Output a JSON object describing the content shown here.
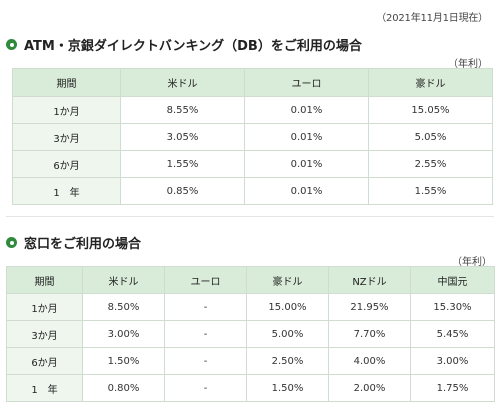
{
  "date_note": "（2021年11月1日現在）",
  "section1": {
    "title": "ATM・京銀ダイレクトバンキング（DB）をご利用の場合",
    "unit": "（年利）",
    "headers": [
      "期間",
      "米ドル",
      "ユーロ",
      "豪ドル"
    ],
    "rows": [
      {
        "label": "1か月",
        "values": [
          "8.55%",
          "0.01%",
          "15.05%"
        ]
      },
      {
        "label": "3か月",
        "values": [
          "3.05%",
          "0.01%",
          "5.05%"
        ]
      },
      {
        "label": "6か月",
        "values": [
          "1.55%",
          "0.01%",
          "2.55%"
        ]
      },
      {
        "label": "1　年",
        "values": [
          "0.85%",
          "0.01%",
          "1.55%"
        ]
      }
    ]
  },
  "section2": {
    "title": "窓口をご利用の場合",
    "unit": "（年利）",
    "headers": [
      "期間",
      "米ドル",
      "ユーロ",
      "豪ドル",
      "NZドル",
      "中国元"
    ],
    "rows": [
      {
        "label": "1か月",
        "values": [
          "8.50%",
          "-",
          "15.00%",
          "21.95%",
          "15.30%"
        ]
      },
      {
        "label": "3か月",
        "values": [
          "3.00%",
          "-",
          "5.00%",
          "7.70%",
          "5.45%"
        ]
      },
      {
        "label": "6か月",
        "values": [
          "1.50%",
          "-",
          "2.50%",
          "4.00%",
          "3.00%"
        ]
      },
      {
        "label": "1　年",
        "values": [
          "0.80%",
          "-",
          "1.50%",
          "2.00%",
          "1.75%"
        ]
      }
    ]
  },
  "icons": {
    "bullet": "green-circle-bullet-icon"
  },
  "colors": {
    "accent": "#2f8a3e",
    "header_bg": "#d9ecd9",
    "label_bg": "#eef6ee",
    "border": "#cfdccf"
  }
}
